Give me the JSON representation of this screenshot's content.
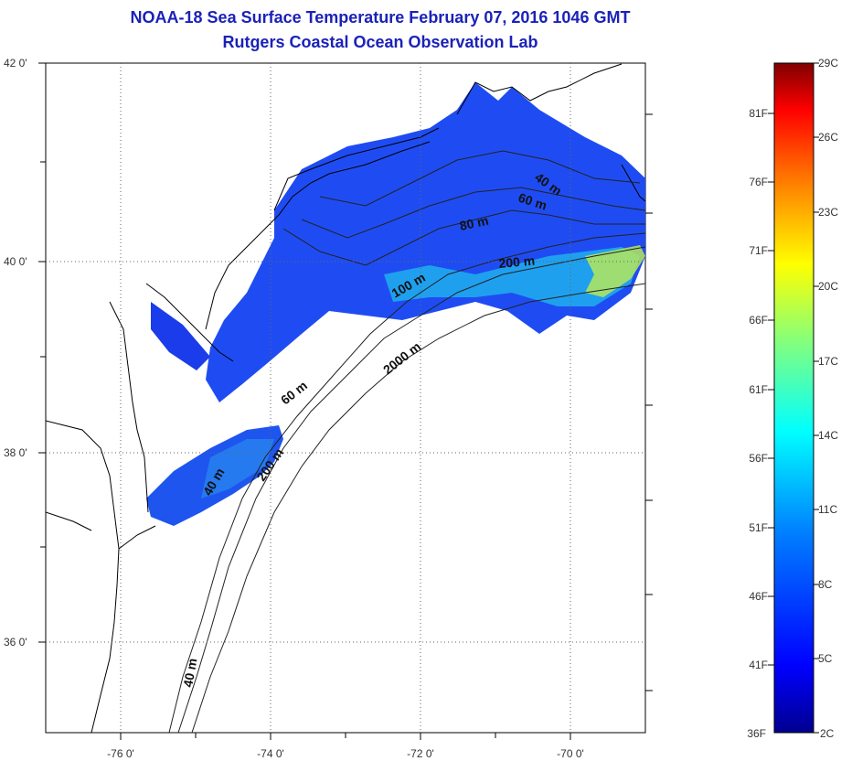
{
  "title": "NOAA-18 Sea Surface Temperature February 07, 2016 1046 GMT",
  "subtitle": "Rutgers Coastal Ocean Observation Lab",
  "map": {
    "lon_range": [
      -77,
      -69
    ],
    "lat_range": [
      35,
      42
    ],
    "lon_ticks": [
      -76,
      -74,
      -72,
      -70
    ],
    "lon_labels": [
      "-76 0'",
      "-74 0'",
      "-72 0'",
      "-70 0'"
    ],
    "lat_ticks": [
      42,
      40,
      38,
      36
    ],
    "lat_labels": [
      "42 0'",
      "40 0'",
      "38 0'",
      "36 0'"
    ],
    "grid": "dotted"
  },
  "contour_labels": [
    "40 m",
    "60 m",
    "80 m",
    "100 m",
    "200 m",
    "2000 m",
    "60 m",
    "40 m",
    "200 m",
    "40 m"
  ],
  "colorbar": {
    "celsius_labels": [
      "29C",
      "26C",
      "23C",
      "20C",
      "17C",
      "14C",
      "11C",
      "8C",
      "5C",
      "2C"
    ],
    "fahrenheit_labels": [
      "81F",
      "76F",
      "71F",
      "66F",
      "61F",
      "56F",
      "51F",
      "46F",
      "41F",
      "36F"
    ],
    "colors": [
      "#00008f",
      "#0000ff",
      "#0080ff",
      "#00ffff",
      "#80ff80",
      "#ffff00",
      "#ff8000",
      "#ff0000",
      "#800000"
    ]
  }
}
